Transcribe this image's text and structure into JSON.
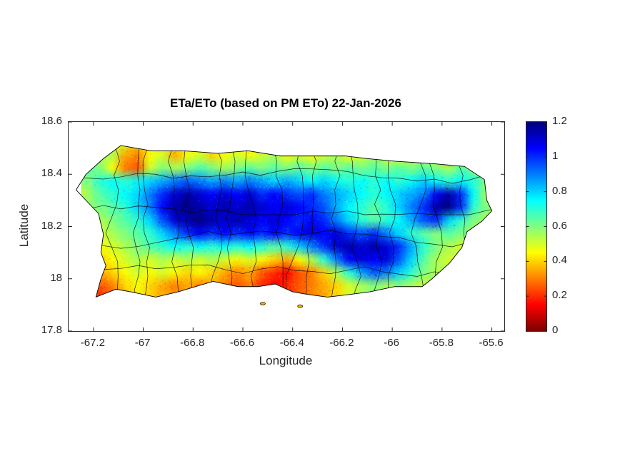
{
  "chart_data": {
    "type": "heatmap",
    "title": "ETa/ETo (based on PM ETo) 22-Jan-2026",
    "xlabel": "Longitude",
    "ylabel": "Latitude",
    "region": "Puerto Rico with municipal boundary lines overlaid in black",
    "xlim": [
      -67.3,
      -65.55
    ],
    "ylim": [
      17.8,
      18.6
    ],
    "xtick_labels": [
      "-67.2",
      "-67",
      "-66.8",
      "-66.6",
      "-66.4",
      "-66.2",
      "-66",
      "-65.8",
      "-65.6"
    ],
    "ytick_labels": [
      "17.8",
      "18",
      "18.2",
      "18.4",
      "18.6"
    ],
    "colormap": "jet reversed (0 = dark red, 1.2 = dark blue)",
    "colorbar": {
      "min": 0,
      "max": 1.2,
      "tick_labels": [
        "0",
        "0.2",
        "0.4",
        "0.6",
        "0.8",
        "1",
        "1.2"
      ]
    },
    "grid": {
      "lon_start": -67.25,
      "lat_start": 18.55,
      "dlon": 0.05,
      "dlat": 0.05,
      "ncols": 33,
      "nrows": 13,
      "order": "rows north to south; null = ocean / no data"
    },
    "values": [
      [
        null,
        null,
        null,
        0.5,
        0.4,
        0.45,
        0.5,
        0.45,
        0.4,
        0.45,
        0.5,
        0.45,
        0.5,
        null,
        null,
        null,
        null,
        null,
        null,
        null,
        null,
        null,
        null,
        null,
        null,
        null,
        null,
        null,
        null,
        null,
        null,
        null,
        null
      ],
      [
        null,
        null,
        0.55,
        0.35,
        0.3,
        0.45,
        0.5,
        0.35,
        0.45,
        0.5,
        0.4,
        0.45,
        0.5,
        0.45,
        0.5,
        0.55,
        0.45,
        0.5,
        0.45,
        0.5,
        0.55,
        0.45,
        0.5,
        0.55,
        0.5,
        0.45,
        0.5,
        0.45,
        0.5,
        0.25,
        0.55,
        null,
        null
      ],
      [
        null,
        0.6,
        0.45,
        0.3,
        0.25,
        0.5,
        0.6,
        0.55,
        0.6,
        0.65,
        0.6,
        0.55,
        0.6,
        0.65,
        0.6,
        0.65,
        0.6,
        0.65,
        0.6,
        0.65,
        0.6,
        0.65,
        0.6,
        0.65,
        0.6,
        0.65,
        0.6,
        0.65,
        0.6,
        0.55,
        0.65,
        0.6,
        null
      ],
      [
        0.6,
        0.7,
        0.75,
        0.7,
        0.75,
        0.8,
        0.85,
        0.9,
        0.95,
        0.9,
        0.85,
        0.9,
        0.85,
        0.9,
        0.85,
        0.8,
        0.85,
        0.8,
        0.75,
        0.8,
        0.75,
        0.7,
        0.75,
        0.7,
        0.75,
        0.7,
        0.75,
        0.8,
        0.75,
        0.7,
        0.75,
        0.7,
        0.6
      ],
      [
        0.55,
        0.65,
        0.7,
        0.75,
        0.8,
        0.9,
        1.0,
        1.1,
        1.15,
        1.1,
        1.05,
        1.1,
        1.05,
        1.1,
        1.0,
        1.05,
        1.0,
        0.95,
        1.0,
        0.9,
        0.85,
        0.8,
        0.75,
        0.7,
        0.75,
        0.8,
        0.85,
        0.9,
        1.05,
        1.15,
        1.0,
        0.75,
        0.55
      ],
      [
        null,
        0.6,
        0.65,
        0.7,
        0.8,
        0.9,
        1.05,
        1.15,
        1.2,
        1.15,
        1.1,
        1.15,
        1.1,
        1.15,
        1.1,
        1.05,
        1.1,
        1.05,
        1.0,
        0.95,
        0.85,
        0.75,
        0.7,
        0.65,
        0.7,
        0.8,
        0.9,
        1.0,
        1.15,
        1.2,
        1.0,
        0.7,
        0.6
      ],
      [
        null,
        0.55,
        0.6,
        0.65,
        0.7,
        0.8,
        0.95,
        1.1,
        1.15,
        1.2,
        1.15,
        1.1,
        1.15,
        1.1,
        1.05,
        1.1,
        1.05,
        1.0,
        1.05,
        1.0,
        0.9,
        0.8,
        0.7,
        0.65,
        0.7,
        0.75,
        0.85,
        0.95,
        1.0,
        0.8,
        0.7,
        0.6,
        0.55
      ],
      [
        null,
        0.5,
        0.55,
        0.6,
        0.65,
        0.7,
        0.8,
        0.9,
        1.0,
        1.05,
        1.0,
        1.05,
        1.0,
        1.05,
        1.0,
        1.05,
        1.0,
        1.05,
        1.1,
        1.05,
        1.1,
        1.0,
        0.95,
        1.0,
        0.9,
        0.8,
        0.7,
        0.65,
        0.6,
        0.65,
        0.6,
        0.55,
        null
      ],
      [
        null,
        0.45,
        0.5,
        0.55,
        0.6,
        0.65,
        0.7,
        0.75,
        0.7,
        0.75,
        0.7,
        0.75,
        0.7,
        0.75,
        0.7,
        0.65,
        0.7,
        0.8,
        0.9,
        1.0,
        1.1,
        1.15,
        1.1,
        1.15,
        1.1,
        1.0,
        0.85,
        0.7,
        0.6,
        0.55,
        0.5,
        null,
        null
      ],
      [
        null,
        0.4,
        0.45,
        0.5,
        0.55,
        0.5,
        0.55,
        0.5,
        0.55,
        0.5,
        0.55,
        0.5,
        0.45,
        0.5,
        0.45,
        0.4,
        0.35,
        0.45,
        0.55,
        0.7,
        0.9,
        1.05,
        1.1,
        1.05,
        1.1,
        0.95,
        0.8,
        0.65,
        0.55,
        0.5,
        null,
        null,
        null
      ],
      [
        null,
        0.35,
        0.4,
        0.45,
        0.5,
        0.45,
        0.5,
        0.45,
        0.4,
        0.45,
        0.4,
        0.35,
        0.3,
        0.35,
        0.25,
        0.2,
        0.15,
        0.25,
        0.3,
        0.4,
        0.55,
        0.7,
        0.85,
        0.95,
        0.9,
        0.8,
        0.7,
        0.6,
        0.55,
        null,
        null,
        null,
        null
      ],
      [
        null,
        0.25,
        0.3,
        0.4,
        0.45,
        0.4,
        0.35,
        0.3,
        0.35,
        0.3,
        0.35,
        0.3,
        0.25,
        0.3,
        0.2,
        0.15,
        0.2,
        0.25,
        0.3,
        0.35,
        0.4,
        0.5,
        0.55,
        0.6,
        0.55,
        0.6,
        0.55,
        0.5,
        null,
        null,
        null,
        null,
        null
      ],
      [
        null,
        0.2,
        0.25,
        null,
        null,
        null,
        null,
        null,
        null,
        null,
        null,
        null,
        null,
        null,
        null,
        null,
        null,
        null,
        null,
        null,
        null,
        null,
        null,
        null,
        null,
        null,
        null,
        null,
        null,
        null,
        null,
        null,
        null
      ]
    ],
    "coastline": [
      [
        -67.16,
        18.46
      ],
      [
        -67.09,
        18.51
      ],
      [
        -66.97,
        18.49
      ],
      [
        -66.84,
        18.49
      ],
      [
        -66.7,
        18.48
      ],
      [
        -66.58,
        18.49
      ],
      [
        -66.45,
        18.47
      ],
      [
        -66.33,
        18.47
      ],
      [
        -66.19,
        18.47
      ],
      [
        -66.1,
        18.46
      ],
      [
        -65.99,
        18.45
      ],
      [
        -65.83,
        18.44
      ],
      [
        -65.71,
        18.43
      ],
      [
        -65.63,
        18.38
      ],
      [
        -65.62,
        18.3
      ],
      [
        -65.6,
        18.26
      ],
      [
        -65.64,
        18.22
      ],
      [
        -65.7,
        18.18
      ],
      [
        -65.72,
        18.12
      ],
      [
        -65.77,
        18.06
      ],
      [
        -65.84,
        18.0
      ],
      [
        -65.88,
        17.97
      ],
      [
        -65.99,
        17.97
      ],
      [
        -66.09,
        17.95
      ],
      [
        -66.17,
        17.94
      ],
      [
        -66.26,
        17.93
      ],
      [
        -66.34,
        17.94
      ],
      [
        -66.4,
        17.95
      ],
      [
        -66.47,
        17.98
      ],
      [
        -66.54,
        17.97
      ],
      [
        -66.62,
        17.97
      ],
      [
        -66.72,
        17.99
      ],
      [
        -66.79,
        17.97
      ],
      [
        -66.86,
        17.95
      ],
      [
        -66.95,
        17.93
      ],
      [
        -67.05,
        17.95
      ],
      [
        -67.11,
        17.96
      ],
      [
        -67.19,
        17.93
      ],
      [
        -67.17,
        18.0
      ],
      [
        -67.15,
        18.05
      ],
      [
        -67.17,
        18.1
      ],
      [
        -67.16,
        18.17
      ],
      [
        -67.18,
        18.25
      ],
      [
        -67.23,
        18.3
      ],
      [
        -67.27,
        18.34
      ],
      [
        -67.23,
        18.4
      ]
    ],
    "islets": [
      {
        "lon": -66.52,
        "lat": 17.905
      },
      {
        "lon": -66.37,
        "lat": 17.895
      }
    ]
  }
}
